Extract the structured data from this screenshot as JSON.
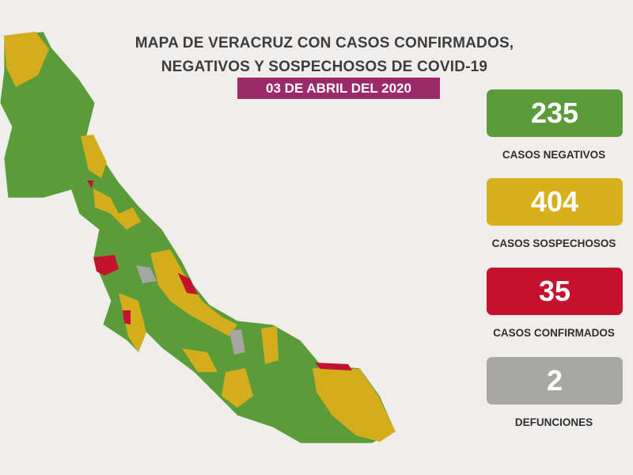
{
  "title": {
    "line1": "MAPA DE VERACRUZ CON CASOS CONFIRMADOS,",
    "line2": "NEGATIVOS Y SOSPECHOSOS DE COVID-19"
  },
  "date": "03 DE ABRIL DEL 2020",
  "stats": [
    {
      "value": 235,
      "label": "CASOS NEGATIVOS"
    },
    {
      "value": 404,
      "label": "CASOS SOSPECHOSOS"
    },
    {
      "value": 35,
      "label": "CASOS CONFIRMADOS"
    },
    {
      "value": 2,
      "label": "DEFUNCIONES"
    }
  ]
}
